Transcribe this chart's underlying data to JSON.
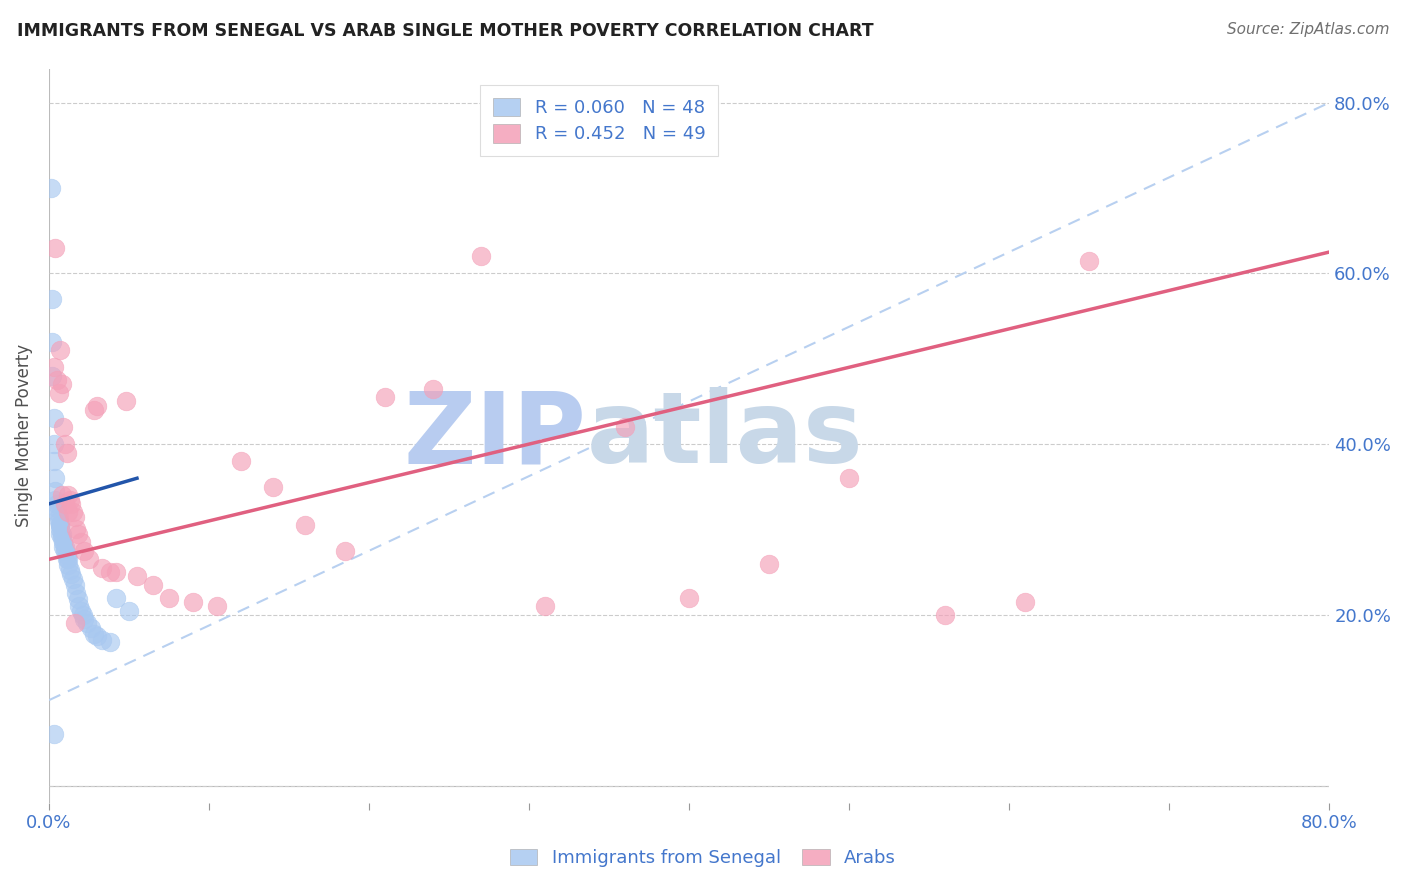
{
  "title": "IMMIGRANTS FROM SENEGAL VS ARAB SINGLE MOTHER POVERTY CORRELATION CHART",
  "source": "Source: ZipAtlas.com",
  "ylabel": "Single Mother Poverty",
  "y_ticks": [
    0.0,
    0.2,
    0.4,
    0.6,
    0.8
  ],
  "y_tick_labels": [
    "",
    "20.0%",
    "40.0%",
    "60.0%",
    "80.0%"
  ],
  "x_ticks": [
    0.0,
    0.1,
    0.2,
    0.3,
    0.4,
    0.5,
    0.6,
    0.7,
    0.8
  ],
  "xlim": [
    0.0,
    0.8
  ],
  "ylim": [
    -0.02,
    0.84
  ],
  "watermark_zip": "ZIP",
  "watermark_atlas": "atlas",
  "legend_senegal_R": "0.060",
  "legend_senegal_N": "48",
  "legend_arab_R": "0.452",
  "legend_arab_N": "49",
  "color_senegal": "#a8c8f0",
  "color_arab": "#f4a0b8",
  "color_senegal_line": "#2255aa",
  "color_arab_line": "#e06080",
  "color_dashed": "#b8d0f0",
  "color_grid": "#cccccc",
  "color_title": "#222222",
  "color_tick_labels": "#4477cc",
  "color_ylabel": "#505050",
  "color_source": "#707070",
  "color_watermark_zip": "#b8ccf0",
  "color_watermark_atlas": "#c8d8e8",
  "senegal_x": [
    0.001,
    0.002,
    0.002,
    0.002,
    0.003,
    0.003,
    0.003,
    0.004,
    0.004,
    0.004,
    0.005,
    0.005,
    0.005,
    0.006,
    0.006,
    0.007,
    0.007,
    0.007,
    0.007,
    0.008,
    0.008,
    0.009,
    0.009,
    0.01,
    0.01,
    0.011,
    0.011,
    0.012,
    0.012,
    0.013,
    0.014,
    0.015,
    0.016,
    0.017,
    0.018,
    0.019,
    0.02,
    0.021,
    0.022,
    0.024,
    0.026,
    0.028,
    0.03,
    0.033,
    0.038,
    0.042,
    0.05,
    0.003
  ],
  "senegal_y": [
    0.7,
    0.57,
    0.52,
    0.48,
    0.43,
    0.4,
    0.38,
    0.36,
    0.345,
    0.335,
    0.33,
    0.325,
    0.32,
    0.315,
    0.31,
    0.305,
    0.305,
    0.3,
    0.295,
    0.295,
    0.29,
    0.285,
    0.28,
    0.28,
    0.275,
    0.27,
    0.265,
    0.265,
    0.258,
    0.252,
    0.248,
    0.242,
    0.235,
    0.225,
    0.218,
    0.21,
    0.205,
    0.2,
    0.195,
    0.19,
    0.185,
    0.178,
    0.175,
    0.17,
    0.168,
    0.22,
    0.205,
    0.06
  ],
  "arab_x": [
    0.003,
    0.004,
    0.005,
    0.006,
    0.007,
    0.008,
    0.009,
    0.01,
    0.011,
    0.012,
    0.013,
    0.014,
    0.015,
    0.016,
    0.017,
    0.018,
    0.02,
    0.022,
    0.025,
    0.028,
    0.03,
    0.033,
    0.038,
    0.042,
    0.048,
    0.055,
    0.065,
    0.075,
    0.09,
    0.105,
    0.12,
    0.14,
    0.16,
    0.185,
    0.21,
    0.24,
    0.27,
    0.31,
    0.36,
    0.4,
    0.45,
    0.5,
    0.56,
    0.61,
    0.65,
    0.008,
    0.01,
    0.012,
    0.016
  ],
  "arab_y": [
    0.49,
    0.63,
    0.475,
    0.46,
    0.51,
    0.47,
    0.42,
    0.4,
    0.39,
    0.34,
    0.335,
    0.33,
    0.32,
    0.315,
    0.3,
    0.295,
    0.285,
    0.275,
    0.265,
    0.44,
    0.445,
    0.255,
    0.25,
    0.25,
    0.45,
    0.245,
    0.235,
    0.22,
    0.215,
    0.21,
    0.38,
    0.35,
    0.305,
    0.275,
    0.455,
    0.465,
    0.62,
    0.21,
    0.42,
    0.22,
    0.26,
    0.36,
    0.2,
    0.215,
    0.615,
    0.34,
    0.33,
    0.32,
    0.19
  ],
  "senegal_trendline_x": [
    0.0,
    0.055
  ],
  "senegal_trendline_y": [
    0.33,
    0.36
  ],
  "arab_trendline_x": [
    0.0,
    0.8
  ],
  "arab_trendline_y": [
    0.265,
    0.625
  ],
  "dashed_trendline_x": [
    0.0,
    0.8
  ],
  "dashed_trendline_y": [
    0.1,
    0.8
  ]
}
